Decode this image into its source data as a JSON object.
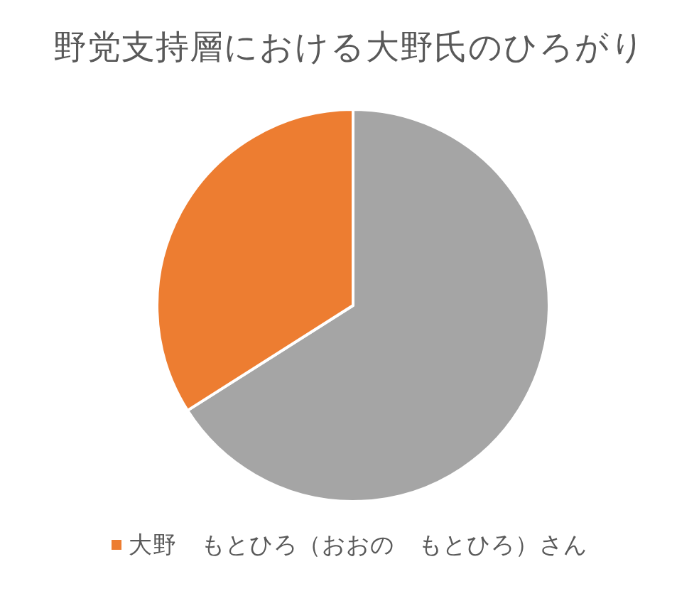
{
  "chart_data": {
    "type": "pie",
    "title": "野党支持層における大野氏のひろがり",
    "categories": [
      null,
      "大野　もとひろ（おおの　もとひろ）さん"
    ],
    "values": [
      66,
      34
    ],
    "colors": [
      "#a5a5a5",
      "#ed7d31"
    ],
    "legend": "bottom"
  }
}
